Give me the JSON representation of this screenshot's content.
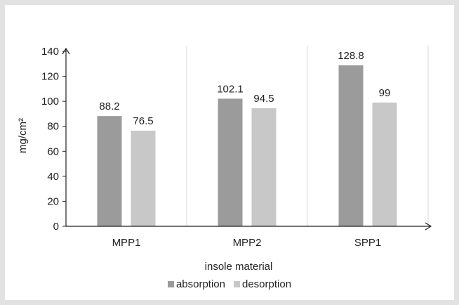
{
  "chart_data": {
    "type": "bar",
    "categories": [
      "MPP1",
      "MPP2",
      "SPP1"
    ],
    "series": [
      {
        "name": "absorption",
        "values": [
          88.2,
          102.1,
          128.8
        ],
        "color": "#9b9b9b"
      },
      {
        "name": "desorption",
        "values": [
          76.5,
          94.5,
          99
        ],
        "color": "#c8c8c8"
      }
    ],
    "data_labels": [
      [
        "88.2",
        "102.1",
        "128.8"
      ],
      [
        "76.5",
        "94.5",
        "99"
      ]
    ],
    "xlabel": "insole material",
    "ylabel": "mg/cm²",
    "ylim": [
      0,
      140
    ],
    "yticks": [
      0,
      20,
      40,
      60,
      80,
      100,
      120,
      140
    ],
    "grid": "vertical category separators",
    "legend_position": "bottom"
  }
}
